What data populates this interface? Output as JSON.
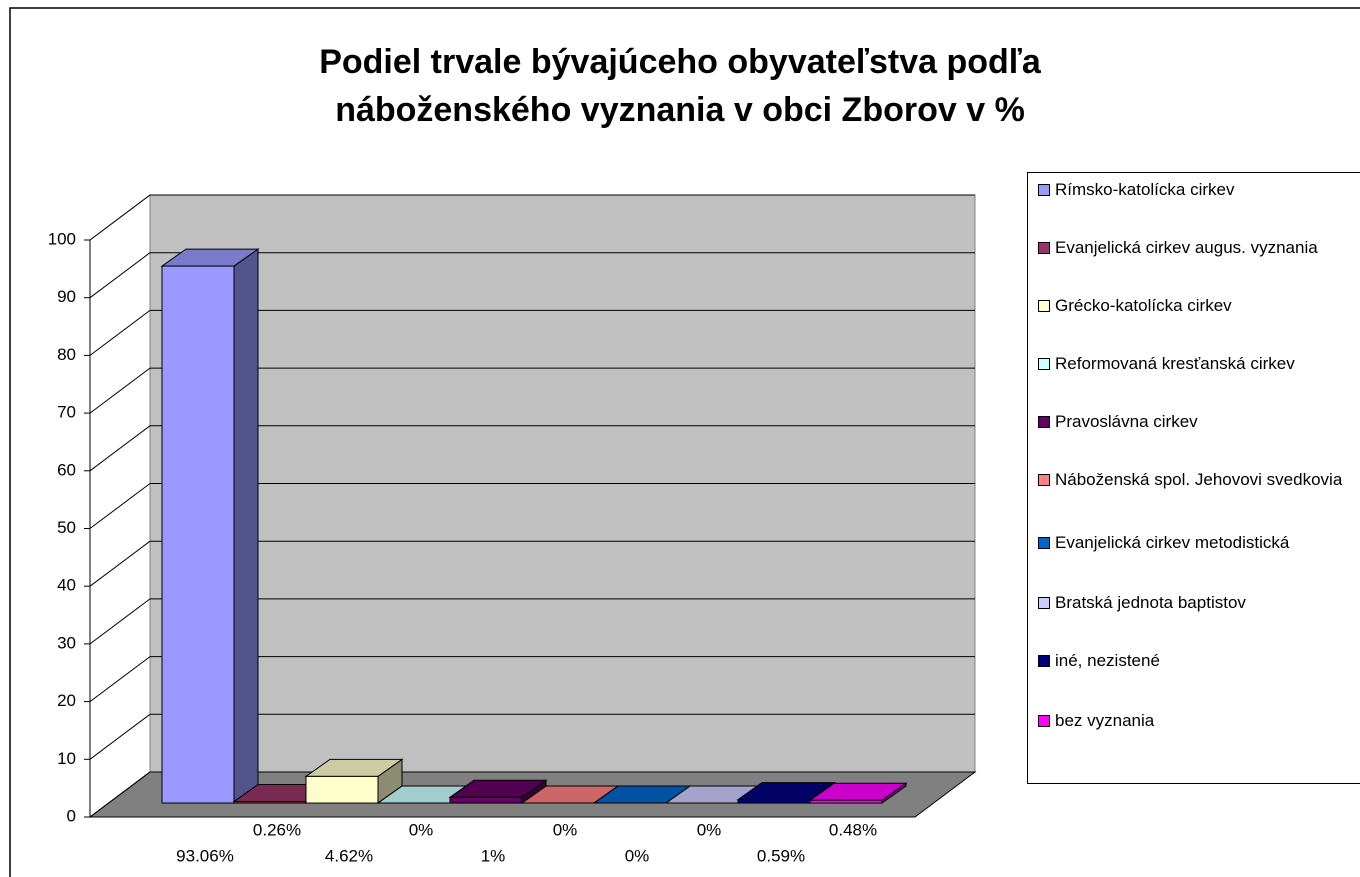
{
  "chart_data": {
    "type": "bar3d",
    "title": "Podiel trvale bývajúceho obyvateľstva podľa náboženského vyznania v obci Zborov v %",
    "categories": [
      "Rímsko-katolícka cirkev",
      "Evanjelická cirkev augus. vyznania",
      "Grécko-katolícka cirkev",
      "Reformovaná kresťanská cirkev",
      "Pravoslávna cirkev",
      "Náboženská spol. Jehovovi svedkovia",
      "Evanjelická cirkev metodistická",
      "Bratská jednota baptistov",
      "iné, nezistené",
      "bez vyznania"
    ],
    "values": [
      93.06,
      0.26,
      4.62,
      0,
      1,
      0,
      0,
      0,
      0.59,
      0.48
    ],
    "value_labels": [
      "93.06%",
      "0.26%",
      "4.62%",
      "0%",
      "1%",
      "0%",
      "0%",
      "0%",
      "0.59%",
      "0.48%"
    ],
    "colors": [
      "#9999ff",
      "#993366",
      "#ffffcc",
      "#ccffff",
      "#660066",
      "#ff8080",
      "#0066cc",
      "#ccccff",
      "#000080",
      "#ff00ff"
    ],
    "ylim": [
      0,
      100
    ],
    "yticks": [
      0,
      10,
      20,
      30,
      40,
      50,
      60,
      70,
      80,
      90,
      100
    ],
    "grid": true,
    "legend": "right"
  }
}
